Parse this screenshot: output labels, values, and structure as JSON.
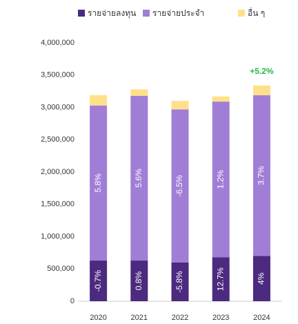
{
  "chart_data": {
    "type": "stacked_bar",
    "categories": [
      "2020",
      "2021",
      "2022",
      "2023",
      "2024"
    ],
    "series": [
      {
        "name": "รายจ่ายลงทุน",
        "color": "#4b2a7f",
        "values": [
          630000,
          630000,
          600000,
          680000,
          700000
        ],
        "labels": [
          "-0.7%",
          "0.8%",
          "-5.8%",
          "12.7%",
          "4%"
        ]
      },
      {
        "name": "รายจ่ายประจำ",
        "color": "#a07ed6",
        "values": [
          2400000,
          2550000,
          2370000,
          2410000,
          2490000
        ],
        "labels": [
          "5.8%",
          "5.6%",
          "-6.5%",
          "1.2%",
          "3.7%"
        ]
      },
      {
        "name": "อื่น ๆ",
        "color": "#ffe08a",
        "values": [
          160000,
          100000,
          130000,
          80000,
          150000
        ]
      }
    ],
    "annotation": {
      "text": "+5.2%",
      "category": 4,
      "color": "#2db34a"
    },
    "ylim": [
      0,
      4000000
    ],
    "yticks": [
      0,
      {
        "value": 500000,
        "label": "500,000"
      },
      {
        "value": 1000000,
        "label": "1,000,000"
      },
      {
        "value": 1500000,
        "label": "1,500,000"
      },
      {
        "value": 2000000,
        "label": "2,000,000"
      },
      {
        "value": 2500000,
        "label": "2,500,000"
      },
      {
        "value": 3000000,
        "label": "3,000,000"
      },
      {
        "value": 3500000,
        "label": "3,500,000"
      },
      {
        "value": 4000000,
        "label": "4,000,000"
      }
    ],
    "grid": false
  }
}
